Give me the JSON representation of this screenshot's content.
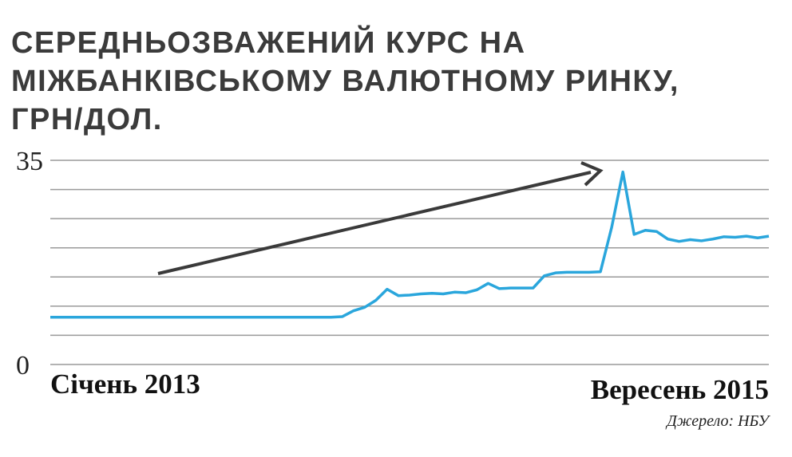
{
  "chart_data": {
    "type": "line",
    "title": "СЕРЕДНЬОЗВАЖЕНИЙ КУРС НА МІЖБАНКІВСЬКОМУ ВАЛЮТНОМУ РИНКУ, ГРН/ДОЛ.",
    "source": "Джерело: НБУ",
    "categories": [
      "Січень 2013",
      null,
      null,
      null,
      null,
      null,
      null,
      null,
      null,
      null,
      null,
      null,
      null,
      null,
      null,
      null,
      null,
      null,
      null,
      null,
      null,
      null,
      null,
      null,
      null,
      null,
      null,
      null,
      null,
      null,
      null,
      null,
      null,
      null,
      null,
      null,
      null,
      null,
      null,
      null,
      null,
      null,
      null,
      null,
      null,
      null,
      null,
      null,
      null,
      null,
      null,
      null,
      null,
      null,
      null,
      null,
      null,
      null,
      null,
      null,
      null,
      null,
      null,
      null,
      "Вересень 2015"
    ],
    "series": [
      {
        "name": "ГРН/ДОЛ",
        "color": "#2aa6dc",
        "values": [
          8.1,
          8.1,
          8.1,
          8.1,
          8.1,
          8.1,
          8.1,
          8.1,
          8.1,
          8.1,
          8.1,
          8.1,
          8.1,
          8.1,
          8.1,
          8.1,
          8.1,
          8.1,
          8.1,
          8.1,
          8.1,
          8.1,
          8.1,
          8.1,
          8.1,
          8.1,
          8.2,
          9.2,
          9.8,
          11.0,
          12.9,
          11.8,
          11.9,
          12.1,
          12.2,
          12.1,
          12.4,
          12.3,
          12.8,
          13.9,
          13.0,
          13.1,
          13.1,
          13.1,
          15.2,
          15.7,
          15.8,
          15.8,
          15.8,
          15.9,
          23.5,
          33.0,
          22.3,
          23.0,
          22.8,
          21.5,
          21.1,
          21.4,
          21.2,
          21.5,
          21.9,
          21.8,
          22.0,
          21.7,
          22.0
        ]
      }
    ],
    "ylim": [
      0,
      35
    ],
    "yticks": [
      0,
      {
        "value": 5,
        "label": null
      },
      {
        "value": 10,
        "label": null
      },
      {
        "value": 15,
        "label": null
      },
      {
        "value": 20,
        "label": null
      },
      {
        "value": 25,
        "label": null
      },
      {
        "value": 30,
        "label": null
      },
      35
    ],
    "grid": true
  }
}
